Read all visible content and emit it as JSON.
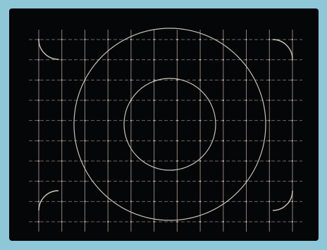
{
  "frame": {
    "background_color": "#8ec8d8"
  },
  "screen": {
    "background_color": "#050607"
  },
  "test_pattern": {
    "grid_color": "#c9b7ae",
    "grid_dot_color": "#d8c7bf",
    "circle_color": "#dcd6cb",
    "corner_arc_color": "#e2dccd",
    "vertical_lines": 12,
    "horizontal_lines": 10
  }
}
